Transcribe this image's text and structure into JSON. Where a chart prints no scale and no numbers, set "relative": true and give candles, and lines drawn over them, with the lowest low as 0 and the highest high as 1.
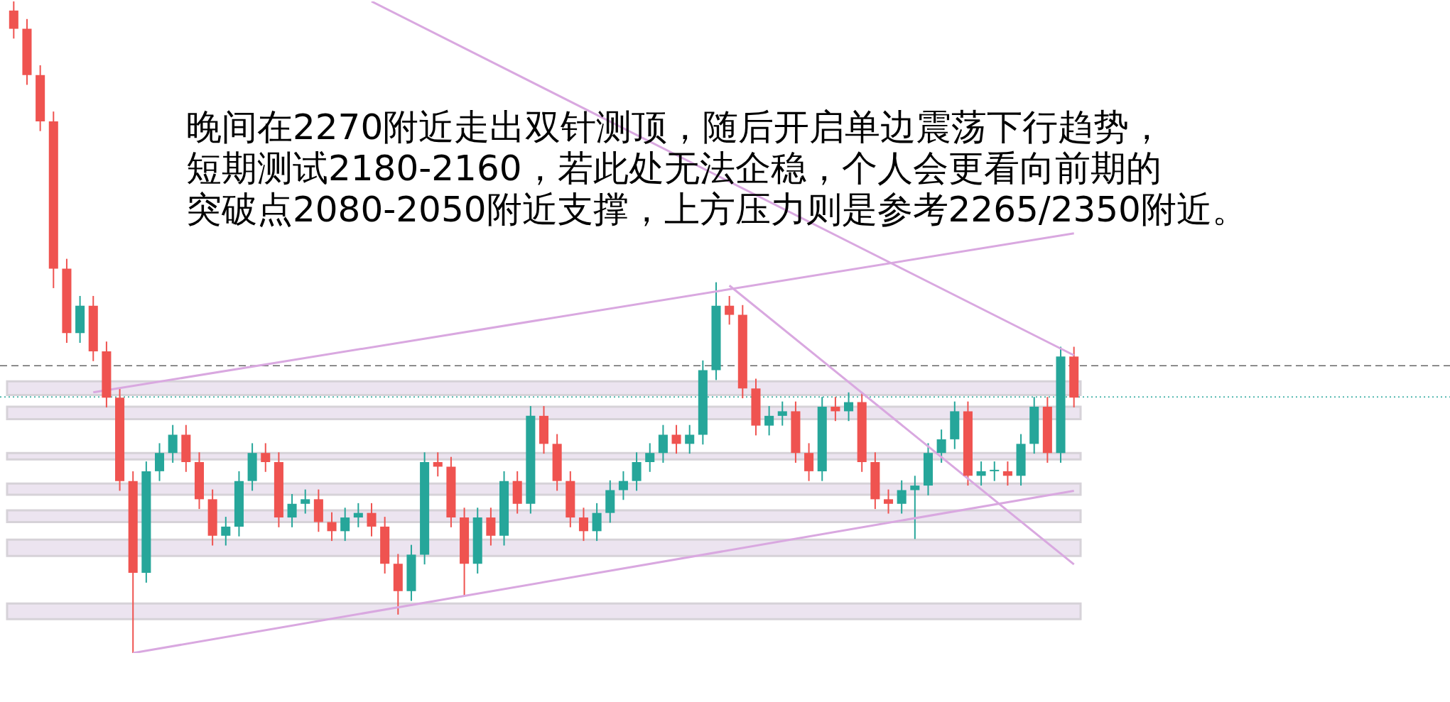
{
  "chart_data": {
    "type": "candlestick",
    "relative": true,
    "categories": [
      null,
      null,
      null,
      null,
      null,
      null,
      null,
      null,
      null,
      null,
      null,
      null,
      null,
      null,
      null,
      null,
      null,
      null,
      null,
      null,
      null,
      null,
      null,
      null,
      null,
      null,
      null,
      null,
      null,
      null,
      null,
      null,
      null,
      null,
      null,
      null,
      null,
      null,
      null,
      null,
      null,
      null,
      null,
      null,
      null,
      null,
      null,
      null,
      null,
      null,
      null,
      null,
      null,
      null,
      null,
      null,
      null,
      null,
      null,
      null,
      null,
      null,
      null,
      null,
      null,
      null,
      null,
      null,
      null,
      null,
      null,
      null,
      null,
      null,
      null,
      null,
      null,
      null,
      null,
      null,
      null
    ],
    "ohlc": [
      [
        0.986,
        1.0,
        0.943,
        0.958
      ],
      [
        0.958,
        0.973,
        0.872,
        0.887
      ],
      [
        0.887,
        0.902,
        0.801,
        0.816
      ],
      [
        0.816,
        0.831,
        0.56,
        0.59
      ],
      [
        0.59,
        0.605,
        0.476,
        0.491
      ],
      [
        0.491,
        0.548,
        0.476,
        0.533
      ],
      [
        0.533,
        0.548,
        0.448,
        0.463
      ],
      [
        0.463,
        0.478,
        0.377,
        0.392
      ],
      [
        0.392,
        0.407,
        0.249,
        0.264
      ],
      [
        0.264,
        0.279,
        0,
        0.123
      ],
      [
        0.123,
        0.294,
        0.108,
        0.279
      ],
      [
        0.279,
        0.322,
        0.264,
        0.307
      ],
      [
        0.307,
        0.35,
        0.292,
        0.335
      ],
      [
        0.335,
        0.35,
        0.278,
        0.293
      ],
      [
        0.293,
        0.308,
        0.221,
        0.236
      ],
      [
        0.236,
        0.251,
        0.165,
        0.18
      ],
      [
        0.18,
        0.209,
        0.165,
        0.194
      ],
      [
        0.194,
        0.279,
        0.179,
        0.264
      ],
      [
        0.264,
        0.322,
        0.249,
        0.307
      ],
      [
        0.307,
        0.322,
        0.278,
        0.293
      ],
      [
        0.293,
        0.308,
        0.193,
        0.208
      ],
      [
        0.208,
        0.244,
        0.193,
        0.229
      ],
      [
        0.229,
        0.251,
        0.214,
        0.236
      ],
      [
        0.236,
        0.251,
        0.186,
        0.201
      ],
      [
        0.201,
        0.216,
        0.172,
        0.187
      ],
      [
        0.187,
        0.223,
        0.172,
        0.208
      ],
      [
        0.208,
        0.23,
        0.193,
        0.215
      ],
      [
        0.215,
        0.23,
        0.179,
        0.194
      ],
      [
        0.194,
        0.209,
        0.122,
        0.137
      ],
      [
        0.137,
        0.152,
        0.059,
        0.095
      ],
      [
        0.095,
        0.166,
        0.08,
        0.151
      ],
      [
        0.151,
        0.308,
        0.136,
        0.293
      ],
      [
        0.293,
        0.308,
        0.271,
        0.286
      ],
      [
        0.286,
        0.301,
        0.193,
        0.208
      ],
      [
        0.208,
        0.223,
        0.088,
        0.137
      ],
      [
        0.137,
        0.223,
        0.122,
        0.208
      ],
      [
        0.208,
        0.223,
        0.165,
        0.18
      ],
      [
        0.18,
        0.279,
        0.165,
        0.264
      ],
      [
        0.264,
        0.279,
        0.214,
        0.229
      ],
      [
        0.229,
        0.379,
        0.214,
        0.364
      ],
      [
        0.364,
        0.379,
        0.306,
        0.321
      ],
      [
        0.321,
        0.336,
        0.249,
        0.264
      ],
      [
        0.264,
        0.279,
        0.193,
        0.208
      ],
      [
        0.208,
        0.223,
        0.172,
        0.187
      ],
      [
        0.187,
        0.23,
        0.172,
        0.215
      ],
      [
        0.215,
        0.265,
        0.2,
        0.25
      ],
      [
        0.25,
        0.279,
        0.235,
        0.264
      ],
      [
        0.264,
        0.308,
        0.249,
        0.293
      ],
      [
        0.293,
        0.322,
        0.278,
        0.307
      ],
      [
        0.307,
        0.35,
        0.292,
        0.335
      ],
      [
        0.335,
        0.35,
        0.306,
        0.321
      ],
      [
        0.321,
        0.35,
        0.306,
        0.335
      ],
      [
        0.335,
        0.449,
        0.32,
        0.434
      ],
      [
        0.434,
        0.569,
        0.419,
        0.533
      ],
      [
        0.533,
        0.548,
        0.504,
        0.519
      ],
      [
        0.519,
        0.534,
        0.391,
        0.406
      ],
      [
        0.406,
        0.421,
        0.334,
        0.349
      ],
      [
        0.349,
        0.379,
        0.334,
        0.364
      ],
      [
        0.364,
        0.386,
        0.349,
        0.371
      ],
      [
        0.371,
        0.386,
        0.292,
        0.307
      ],
      [
        0.307,
        0.322,
        0.264,
        0.279
      ],
      [
        0.279,
        0.393,
        0.264,
        0.378
      ],
      [
        0.378,
        0.393,
        0.356,
        0.371
      ],
      [
        0.371,
        0.4,
        0.356,
        0.385
      ],
      [
        0.385,
        0.4,
        0.278,
        0.293
      ],
      [
        0.293,
        0.308,
        0.221,
        0.236
      ],
      [
        0.236,
        0.251,
        0.214,
        0.229
      ],
      [
        0.229,
        0.265,
        0.214,
        0.25
      ],
      [
        0.25,
        0.272,
        0.175,
        0.257
      ],
      [
        0.257,
        0.322,
        0.242,
        0.307
      ],
      [
        0.307,
        0.343,
        0.292,
        0.328
      ],
      [
        0.328,
        0.386,
        0.313,
        0.371
      ],
      [
        0.371,
        0.386,
        0.257,
        0.272
      ],
      [
        0.272,
        0.294,
        0.257,
        0.279
      ],
      [
        0.279,
        0.294,
        0.264,
        0.279
      ],
      [
        0.279,
        0.294,
        0.257,
        0.272
      ],
      [
        0.272,
        0.336,
        0.257,
        0.321
      ],
      [
        0.321,
        0.393,
        0.306,
        0.378
      ],
      [
        0.378,
        0.393,
        0.292,
        0.307
      ],
      [
        0.307,
        0.47,
        0.292,
        0.455
      ],
      [
        0.455,
        0.47,
        0.377,
        0.392
      ]
    ],
    "series": [
      {
        "type": "line",
        "color": "#d9a8e0",
        "values": [
          null,
          null,
          null,
          null,
          null,
          null,
          0.4,
          null,
          null,
          null,
          null,
          null,
          null,
          null,
          null,
          null,
          null,
          null,
          null,
          null,
          null,
          null,
          null,
          null,
          null,
          null,
          null,
          null,
          null,
          null,
          null,
          null,
          null,
          null,
          null,
          null,
          null,
          null,
          null,
          null,
          null,
          null,
          null,
          null,
          null,
          null,
          null,
          null,
          null,
          null,
          null,
          null,
          null,
          null,
          null,
          null,
          null,
          null,
          null,
          null,
          null,
          null,
          null,
          null,
          null,
          null,
          null,
          null,
          null,
          null,
          null,
          null,
          null,
          null,
          null,
          null,
          null,
          null,
          null,
          null,
          0.644
        ]
      },
      {
        "type": "line",
        "color": "#d9a8e0",
        "values": [
          null,
          null,
          null,
          null,
          null,
          null,
          null,
          null,
          null,
          0.0,
          null,
          null,
          null,
          null,
          null,
          null,
          null,
          null,
          null,
          null,
          null,
          null,
          null,
          null,
          null,
          null,
          null,
          null,
          null,
          null,
          null,
          null,
          null,
          null,
          null,
          null,
          null,
          null,
          null,
          null,
          null,
          null,
          null,
          null,
          null,
          null,
          null,
          null,
          null,
          null,
          null,
          null,
          null,
          null,
          null,
          null,
          null,
          null,
          null,
          null,
          null,
          null,
          null,
          null,
          null,
          null,
          null,
          null,
          null,
          null,
          null,
          null,
          null,
          null,
          null,
          null,
          null,
          null,
          null,
          null,
          0.249
        ]
      },
      {
        "type": "line",
        "color": "#d9a8e0",
        "values": [
          null,
          null,
          null,
          null,
          null,
          null,
          null,
          null,
          null,
          null,
          null,
          null,
          null,
          null,
          null,
          null,
          null,
          null,
          null,
          null,
          null,
          null,
          null,
          null,
          null,
          null,
          null,
          null,
          null,
          null,
          null,
          null,
          null,
          null,
          null,
          null,
          null,
          null,
          null,
          null,
          null,
          null,
          null,
          null,
          null,
          null,
          null,
          null,
          null,
          null,
          null,
          null,
          null,
          null,
          0.564,
          null,
          null,
          null,
          null,
          null,
          null,
          null,
          null,
          null,
          null,
          null,
          null,
          null,
          null,
          null,
          null,
          null,
          null,
          null,
          null,
          null,
          null,
          null,
          null,
          null,
          0.136
        ]
      },
      {
        "type": "line",
        "color": "#d9a8e0",
        "values": [
          null,
          null,
          null,
          null,
          null,
          null,
          null,
          null,
          null,
          null,
          null,
          null,
          null,
          null,
          null,
          null,
          null,
          null,
          null,
          null,
          null,
          null,
          null,
          null,
          null,
          null,
          null,
          1.0,
          null,
          null,
          null,
          null,
          null,
          null,
          null,
          null,
          null,
          null,
          null,
          null,
          null,
          null,
          null,
          null,
          null,
          null,
          null,
          null,
          null,
          null,
          null,
          null,
          null,
          null,
          null,
          null,
          null,
          null,
          null,
          null,
          null,
          null,
          null,
          null,
          null,
          null,
          null,
          null,
          null,
          null,
          null,
          null,
          null,
          null,
          null,
          null,
          null,
          null,
          null,
          null,
          0.457
        ]
      }
    ],
    "bands": [
      {
        "axis": "y",
        "from": 0.396,
        "to": 0.417,
        "color": "#ece4f0"
      },
      {
        "axis": "y",
        "from": 0.359,
        "to": 0.378,
        "color": "#ece4f0"
      },
      {
        "axis": "y",
        "from": 0.297,
        "to": 0.307,
        "color": "#ece4f0"
      },
      {
        "axis": "y",
        "from": 0.243,
        "to": 0.26,
        "color": "#ece4f0"
      },
      {
        "axis": "y",
        "from": 0.201,
        "to": 0.219,
        "color": "#ece4f0"
      },
      {
        "axis": "y",
        "from": 0.149,
        "to": 0.174,
        "color": "#ece4f0"
      },
      {
        "axis": "y",
        "from": 0.052,
        "to": 0.076,
        "color": "#ece4f0"
      }
    ],
    "ref_lines": [
      {
        "axis": "y",
        "value": 0.441,
        "color": "#666666",
        "line_style": "dashed"
      },
      {
        "axis": "y",
        "value": 0.393,
        "color": "#26a69a",
        "line_style": "dotted"
      }
    ],
    "annotations": [
      "晚间在2270附近走出双针测顶，随后开启单边震荡下行趋势，",
      "短期测试2180-2160，若此处无法企稳，个人会更看向前期的",
      "突破点2080-2050附近支撑，上方压力则是参考2265/2350附近。"
    ],
    "legend": false
  }
}
